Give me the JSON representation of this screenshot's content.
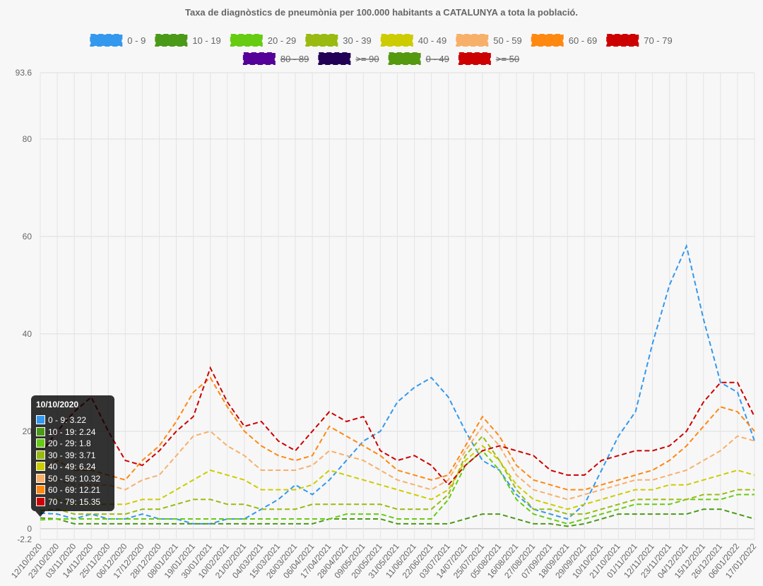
{
  "chart_data": {
    "type": "line",
    "title": "Taxa de diagnòstics de pneumònia per 100.000 habitants a CATALUNYA a tota la població.",
    "ylim": [
      -2.2,
      93.6
    ],
    "y_ticks": [
      -2.2,
      0,
      20,
      40,
      60,
      80,
      93.6
    ],
    "grid": true,
    "legend_position": "top",
    "x_tick_labels": [
      "12/10/2020",
      "23/10/2020",
      "03/11/2020",
      "14/11/2020",
      "25/11/2020",
      "06/12/2020",
      "17/12/2020",
      "28/12/2020",
      "08/01/2021",
      "19/01/2021",
      "30/01/2021",
      "10/02/2021",
      "21/02/2021",
      "04/03/2021",
      "15/03/2021",
      "26/03/2021",
      "06/04/2021",
      "17/04/2021",
      "28/04/2021",
      "09/05/2021",
      "20/05/2021",
      "31/05/2021",
      "11/06/2021",
      "22/06/2021",
      "03/07/2021",
      "14/07/2021",
      "25/07/2021",
      "05/08/2021",
      "16/08/2021",
      "27/08/2021",
      "07/09/2021",
      "18/09/2021",
      "29/09/2021",
      "10/10/2021",
      "21/10/2021",
      "01/11/2021",
      "12/11/2021",
      "23/11/2021",
      "04/12/2021",
      "15/12/2021",
      "26/12/2021",
      "06/01/2022",
      "17/01/2022"
    ],
    "series": [
      {
        "name": "0 - 9",
        "color": "#3399ee",
        "hidden": false,
        "values": [
          3.2,
          3,
          2,
          3,
          2,
          2,
          3,
          2,
          2,
          1,
          1,
          2,
          2,
          4,
          6,
          9,
          7,
          10,
          14,
          18,
          20,
          26,
          29,
          31,
          27,
          20,
          14,
          12,
          7,
          4,
          3,
          2,
          5,
          12,
          19,
          24,
          38,
          50,
          58,
          43,
          30,
          28,
          18
        ]
      },
      {
        "name": "10 - 19",
        "color": "#4a9a17",
        "hidden": false,
        "values": [
          2.2,
          2,
          1,
          1,
          1,
          1,
          1,
          1,
          1,
          1,
          1,
          1,
          1,
          1,
          1,
          1,
          1,
          2,
          2,
          2,
          2,
          1,
          1,
          1,
          1,
          2,
          3,
          3,
          2,
          1,
          1,
          0.5,
          1,
          2,
          3,
          3,
          3,
          3,
          3,
          4,
          4,
          3,
          2
        ]
      },
      {
        "name": "20 - 29",
        "color": "#66cc11",
        "hidden": false,
        "values": [
          1.8,
          2,
          2,
          2,
          2,
          2,
          2,
          2,
          2,
          2,
          2,
          2,
          2,
          2,
          2,
          2,
          2,
          2,
          3,
          3,
          3,
          2,
          2,
          2,
          6,
          13,
          16,
          12,
          6,
          3,
          2,
          1,
          2,
          3,
          4,
          5,
          5,
          5,
          6,
          6,
          6,
          7,
          7
        ]
      },
      {
        "name": "30 - 39",
        "color": "#99bb11",
        "hidden": false,
        "values": [
          3.7,
          4,
          3,
          3,
          3,
          3,
          4,
          4,
          5,
          6,
          6,
          5,
          5,
          4,
          4,
          4,
          5,
          5,
          5,
          5,
          5,
          4,
          4,
          4,
          7,
          15,
          19,
          14,
          8,
          4,
          4,
          3,
          3,
          4,
          5,
          6,
          6,
          6,
          6,
          7,
          7,
          8,
          8
        ]
      },
      {
        "name": "40 - 49",
        "color": "#cccc00",
        "hidden": false,
        "values": [
          6.2,
          6,
          5,
          5,
          5,
          5,
          6,
          6,
          8,
          10,
          12,
          11,
          10,
          8,
          8,
          8,
          9,
          12,
          11,
          10,
          9,
          8,
          7,
          6,
          8,
          14,
          17,
          14,
          9,
          6,
          5,
          4,
          5,
          6,
          7,
          8,
          8,
          9,
          9,
          10,
          11,
          12,
          11
        ]
      },
      {
        "name": "50 - 59",
        "color": "#f7b06a",
        "hidden": false,
        "values": [
          10.3,
          10,
          9,
          9,
          9,
          8,
          10,
          11,
          15,
          19,
          20,
          17,
          15,
          12,
          12,
          12,
          13,
          16,
          15,
          14,
          12,
          10,
          9,
          8,
          10,
          16,
          21,
          17,
          11,
          8,
          7,
          6,
          7,
          8,
          9,
          10,
          10,
          11,
          12,
          14,
          16,
          19,
          18
        ]
      },
      {
        "name": "60 - 69",
        "color": "#ff8811",
        "hidden": false,
        "values": [
          12.2,
          14,
          12,
          12,
          11,
          10,
          14,
          17,
          22,
          28,
          31,
          25,
          20,
          17,
          15,
          14,
          15,
          21,
          19,
          17,
          15,
          12,
          11,
          10,
          11,
          17,
          23,
          19,
          13,
          10,
          9,
          8,
          8,
          9,
          10,
          11,
          12,
          14,
          17,
          21,
          25,
          24,
          20
        ]
      },
      {
        "name": "70 - 79",
        "color": "#cc0000",
        "hidden": false,
        "values": [
          15.4,
          20,
          24,
          27,
          20,
          14,
          13,
          16,
          20,
          23,
          33,
          26,
          21,
          22,
          18,
          16,
          20,
          24,
          22,
          23,
          16,
          14,
          15,
          13,
          9,
          13,
          16,
          17,
          16,
          15,
          12,
          11,
          11,
          14,
          15,
          16,
          16,
          17,
          20,
          26,
          30,
          30,
          23
        ]
      },
      {
        "name": "80 - 89",
        "color": "#550099",
        "hidden": true,
        "values": []
      },
      {
        "name": ">= 90",
        "color": "#220055",
        "hidden": true,
        "values": []
      },
      {
        "name": "0 - 49",
        "color": "#559911",
        "hidden": true,
        "values": []
      },
      {
        "name": ">= 50",
        "color": "#cc0000",
        "hidden": true,
        "values": []
      }
    ],
    "tooltip": {
      "title": "10/10/2020",
      "rows": [
        {
          "label": "0 - 9: 3.22",
          "color": "#3399ee"
        },
        {
          "label": "10 - 19: 2.24",
          "color": "#4a9a17"
        },
        {
          "label": "20 - 29: 1.8",
          "color": "#66cc11"
        },
        {
          "label": "30 - 39: 3.71",
          "color": "#99bb11"
        },
        {
          "label": "40 - 49: 6.24",
          "color": "#cccc00"
        },
        {
          "label": "50 - 59: 10.32",
          "color": "#f7b06a"
        },
        {
          "label": "60 - 69: 12.21",
          "color": "#ff8811"
        },
        {
          "label": "70 - 79: 15.35",
          "color": "#cc0000"
        }
      ]
    }
  }
}
